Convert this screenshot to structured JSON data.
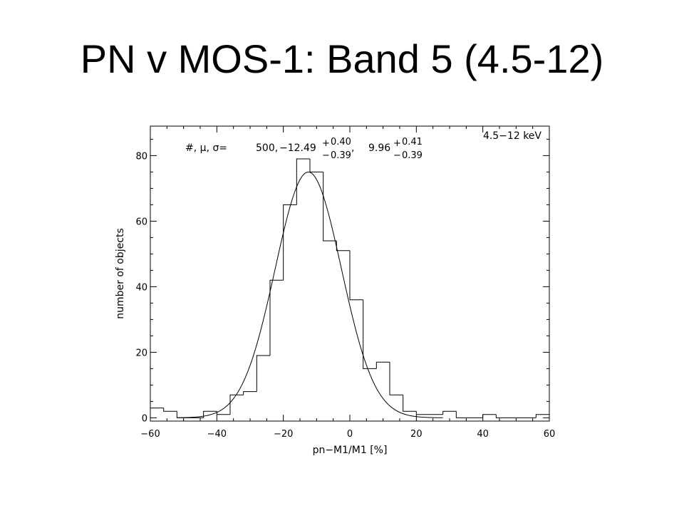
{
  "slide": {
    "title": "PN v MOS-1: Band 5 (4.5-12)"
  },
  "chart_data": {
    "type": "bar",
    "subtype": "histogram-with-gaussian-fit",
    "xlabel": "pn−M1/M1 [%]",
    "ylabel": "number of objects",
    "xlim": [
      -60,
      60
    ],
    "ylim": [
      -1,
      89
    ],
    "x_ticks": [
      -60,
      -40,
      -20,
      0,
      20,
      40,
      60
    ],
    "y_ticks": [
      0,
      20,
      40,
      60,
      80
    ],
    "x_tick_labels": [
      "−60",
      "−40",
      "−20",
      "0",
      "20",
      "40",
      "60"
    ],
    "y_tick_labels": [
      "0",
      "20",
      "40",
      "60",
      "80"
    ],
    "grid": false,
    "band_label": "4.5−12 keV",
    "stats": {
      "prefix": "#, μ, σ=",
      "n": "500,",
      "mean": "−12.49",
      "mean_err_plus": "0.40",
      "mean_err_minus": "0.39",
      "sigma": "9.96",
      "sigma_err_plus": "0.41",
      "sigma_err_minus": "0.39",
      "plus_sign": "+",
      "minus_sign": "−",
      "separator": ","
    },
    "histogram": {
      "bin_width": 4,
      "bin_starts": [
        -60,
        -56,
        -52,
        -48,
        -44,
        -40,
        -36,
        -32,
        -28,
        -24,
        -20,
        -16,
        -12,
        -8,
        -4,
        0,
        4,
        8,
        12,
        16,
        20,
        24,
        28,
        32,
        36,
        40,
        44,
        48,
        52,
        56
      ],
      "counts": [
        3,
        2,
        0,
        0,
        2,
        1,
        7,
        8,
        19,
        42,
        65,
        79,
        75,
        54,
        51,
        36,
        15,
        17,
        7,
        2,
        1,
        1,
        2,
        0,
        0,
        1,
        0,
        0,
        0,
        1
      ]
    },
    "fit": {
      "function": "gaussian",
      "amplitude": 75,
      "mean": -12.49,
      "sigma": 9.96
    }
  }
}
